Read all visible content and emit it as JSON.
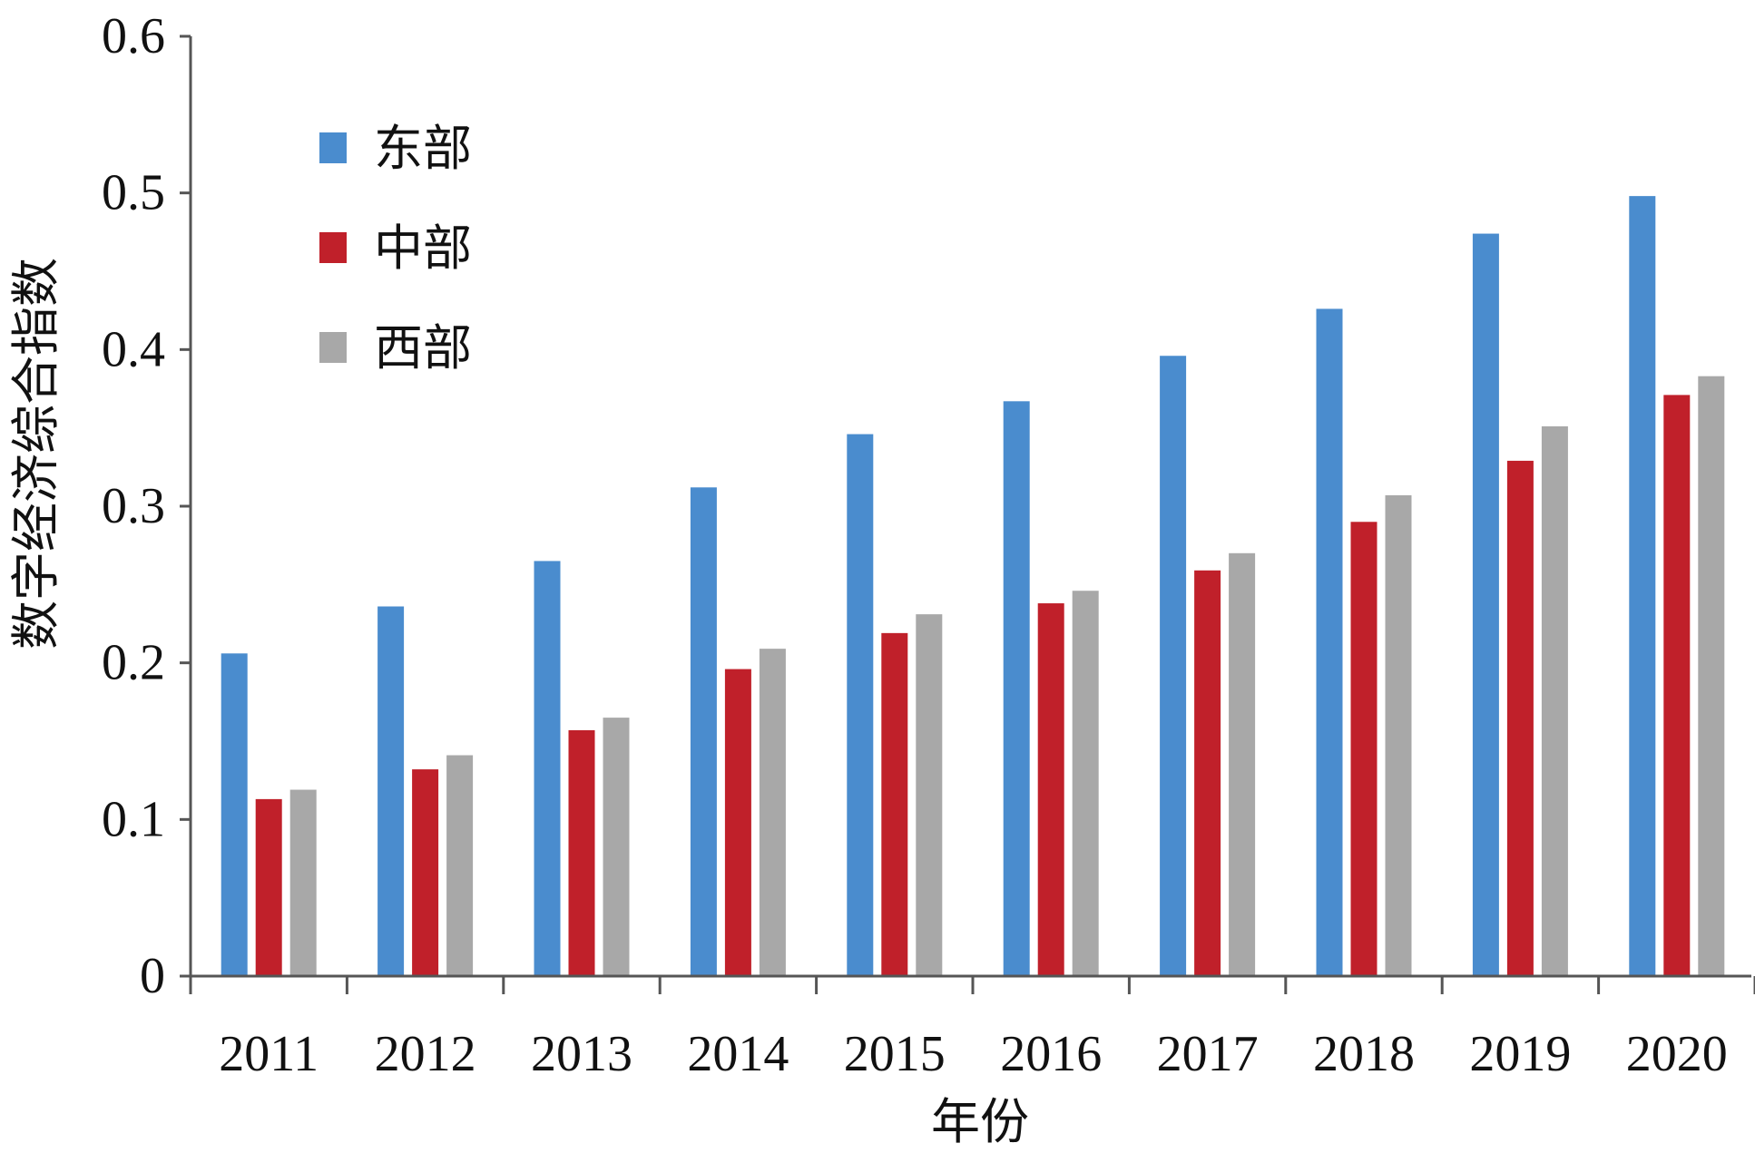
{
  "chart_data": {
    "type": "bar",
    "title": "",
    "xlabel": "年份",
    "ylabel": "数字经济综合指数",
    "ylim": [
      0,
      0.6
    ],
    "yticks": [
      "0",
      "0.1",
      "0.2",
      "0.3",
      "0.4",
      "0.5",
      "0.6"
    ],
    "grid": false,
    "legend_position": "top-left",
    "categories": [
      "2011",
      "2012",
      "2013",
      "2014",
      "2015",
      "2016",
      "2017",
      "2018",
      "2019",
      "2020"
    ],
    "series": [
      {
        "name": "东部",
        "color": "#4a8cce",
        "values": [
          0.206,
          0.236,
          0.265,
          0.312,
          0.346,
          0.367,
          0.396,
          0.426,
          0.474,
          0.498
        ]
      },
      {
        "name": "中部",
        "color": "#c0202a",
        "values": [
          0.113,
          0.132,
          0.157,
          0.196,
          0.219,
          0.238,
          0.259,
          0.29,
          0.329,
          0.371
        ]
      },
      {
        "name": "西部",
        "color": "#a8a8a8",
        "values": [
          0.119,
          0.141,
          0.165,
          0.209,
          0.231,
          0.246,
          0.27,
          0.307,
          0.351,
          0.383
        ]
      }
    ]
  }
}
